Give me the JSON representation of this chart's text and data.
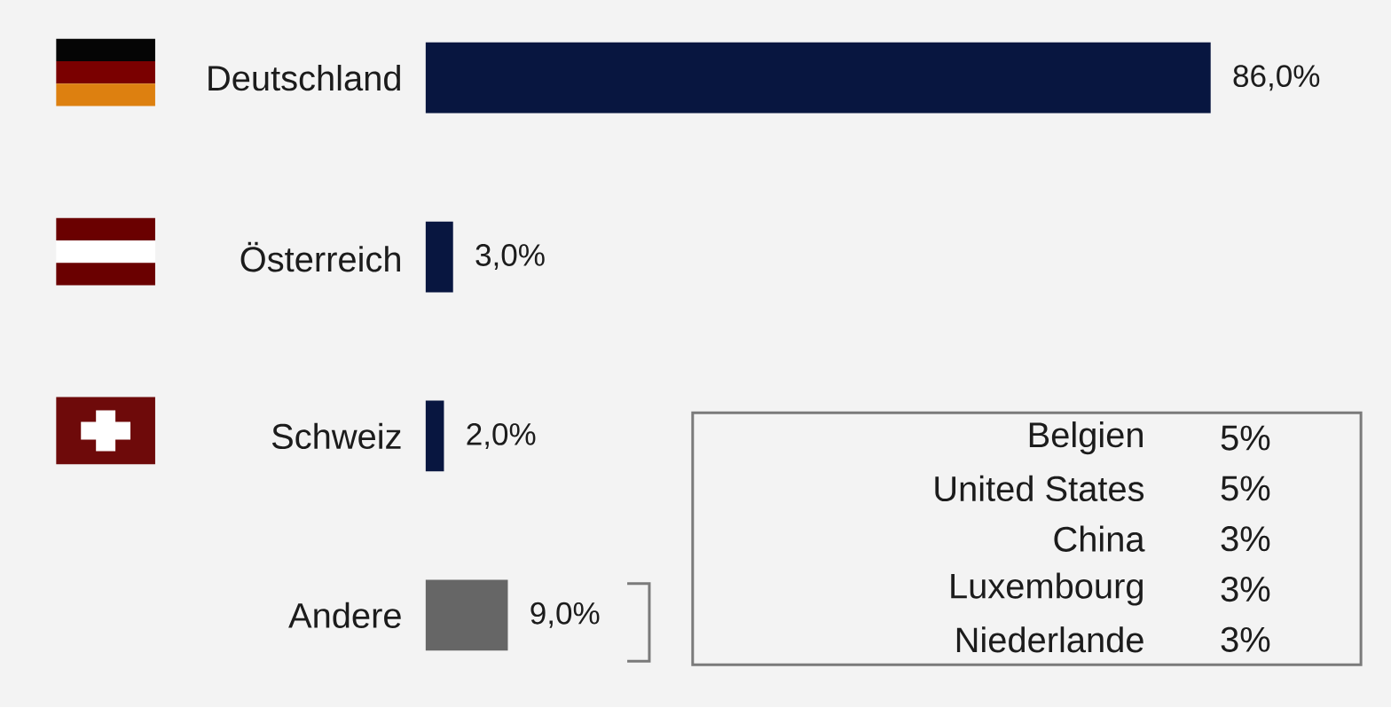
{
  "chart_data": [
    {
      "type": "bar",
      "orientation": "horizontal",
      "categories": [
        "Deutschland",
        "Österreich",
        "Schweiz",
        "Andere"
      ],
      "values": [
        86.0,
        3.0,
        2.0,
        9.0
      ],
      "colors": [
        "#081640",
        "#081640",
        "#081640",
        "#666666"
      ],
      "value_labels": [
        "86,0%",
        "3,0%",
        "2,0%",
        "9,0%"
      ],
      "tick_labels": "y"
    },
    {
      "type": "other",
      "categories": [
        "Belgien",
        "United States",
        "China",
        "Luxembourg",
        "Niederlande"
      ],
      "values": [
        5,
        5,
        3,
        3,
        3
      ],
      "value_labels": [
        "5%",
        "5%",
        "3%",
        "3%",
        "3%"
      ]
    }
  ]
}
